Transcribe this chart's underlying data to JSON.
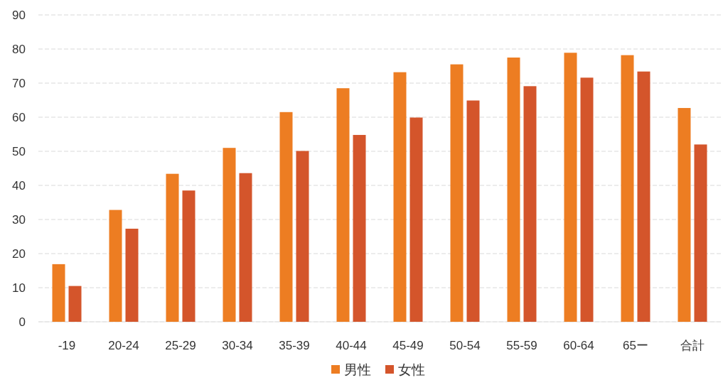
{
  "chart_data": {
    "type": "bar",
    "categories": [
      "-19",
      "20-24",
      "25-29",
      "30-34",
      "35-39",
      "40-44",
      "45-49",
      "50-54",
      "55-59",
      "60-64",
      "65ー",
      "合計"
    ],
    "series": [
      {
        "name": "男性",
        "color": "#ed7d22",
        "values": [
          16.9,
          32.8,
          43.4,
          51.0,
          61.5,
          68.5,
          73.2,
          75.5,
          77.5,
          78.9,
          78.2,
          62.7
        ]
      },
      {
        "name": "女性",
        "color": "#d4552b",
        "values": [
          10.5,
          27.3,
          38.5,
          43.6,
          50.1,
          54.8,
          59.9,
          64.9,
          69.1,
          71.6,
          73.4,
          52.0
        ]
      }
    ],
    "ylim": [
      0,
      90
    ],
    "yticks": [
      0,
      10,
      20,
      30,
      40,
      50,
      60,
      70,
      80,
      90
    ],
    "grid": "y",
    "legend": "bottom"
  }
}
